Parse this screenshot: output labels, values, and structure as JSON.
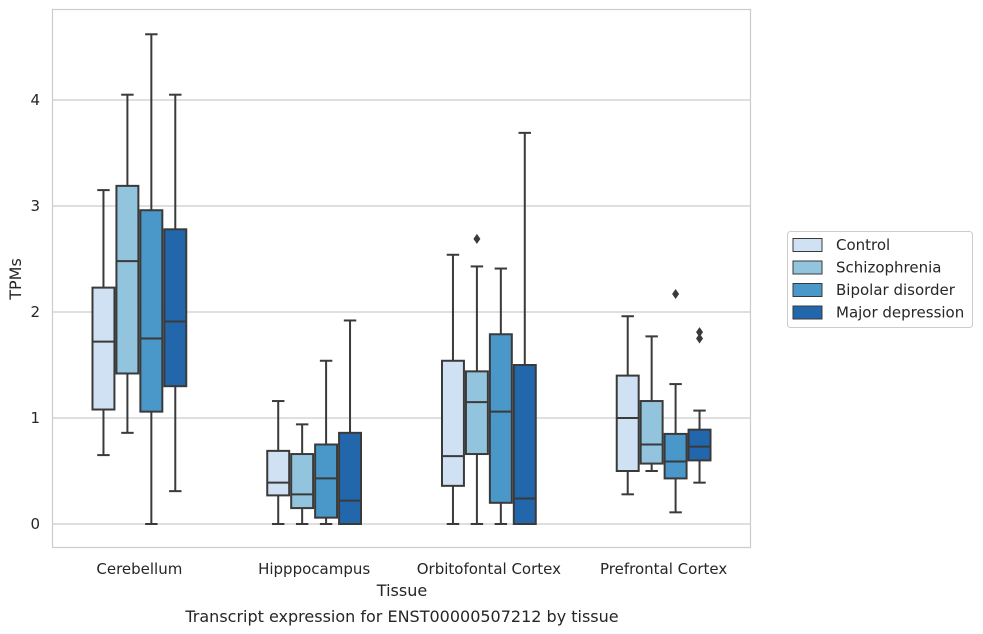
{
  "chart_data": {
    "type": "box",
    "title": "",
    "caption": "Transcript expression for ENST00000507212 by tissue",
    "xlabel": "Tissue",
    "ylabel": "TPMs",
    "ylim": [
      -0.22,
      4.86
    ],
    "yticks": [
      0,
      1,
      2,
      3,
      4
    ],
    "ytick_labels": [
      "0",
      "1",
      "2",
      "3",
      "4"
    ],
    "grid": "horizontal",
    "legend_position": "right",
    "categories": [
      "Cerebellum",
      "Hipppocampus",
      "Orbitofontal Cortex",
      "Prefrontal Cortex"
    ],
    "series": [
      {
        "name": "Control",
        "color": "#cfe1f2",
        "boxes": [
          {
            "whislo": 0.65,
            "q1": 1.08,
            "med": 1.72,
            "q3": 2.23,
            "whishi": 3.15,
            "fliers": []
          },
          {
            "whislo": 0.0,
            "q1": 0.27,
            "med": 0.39,
            "q3": 0.69,
            "whishi": 1.16,
            "fliers": []
          },
          {
            "whislo": 0.0,
            "q1": 0.36,
            "med": 0.64,
            "q3": 1.54,
            "whishi": 2.54,
            "fliers": []
          },
          {
            "whislo": 0.28,
            "q1": 0.5,
            "med": 1.0,
            "q3": 1.4,
            "whishi": 1.96,
            "fliers": []
          }
        ]
      },
      {
        "name": "Schizophrenia",
        "color": "#93c4de",
        "boxes": [
          {
            "whislo": 0.86,
            "q1": 1.42,
            "med": 2.48,
            "q3": 3.19,
            "whishi": 4.05,
            "fliers": []
          },
          {
            "whislo": 0.0,
            "q1": 0.15,
            "med": 0.28,
            "q3": 0.66,
            "whishi": 0.94,
            "fliers": []
          },
          {
            "whislo": 0.0,
            "q1": 0.66,
            "med": 1.15,
            "q3": 1.44,
            "whishi": 2.43,
            "fliers": [
              2.69
            ]
          },
          {
            "whislo": 0.5,
            "q1": 0.57,
            "med": 0.75,
            "q3": 1.16,
            "whishi": 1.77,
            "fliers": []
          }
        ]
      },
      {
        "name": "Bipolar disorder",
        "color": "#4a98c9",
        "boxes": [
          {
            "whislo": 0.0,
            "q1": 1.06,
            "med": 1.75,
            "q3": 2.96,
            "whishi": 4.62,
            "fliers": []
          },
          {
            "whislo": 0.0,
            "q1": 0.06,
            "med": 0.43,
            "q3": 0.75,
            "whishi": 1.54,
            "fliers": []
          },
          {
            "whislo": 0.0,
            "q1": 0.2,
            "med": 1.06,
            "q3": 1.79,
            "whishi": 2.41,
            "fliers": []
          },
          {
            "whislo": 0.11,
            "q1": 0.43,
            "med": 0.59,
            "q3": 0.85,
            "whishi": 1.32,
            "fliers": [
              2.17
            ]
          }
        ]
      },
      {
        "name": "Major depression",
        "color": "#2267ac",
        "boxes": [
          {
            "whislo": 0.31,
            "q1": 1.3,
            "med": 1.91,
            "q3": 2.78,
            "whishi": 4.05,
            "fliers": []
          },
          {
            "whislo": 0.0,
            "q1": 0.0,
            "med": 0.22,
            "q3": 0.86,
            "whishi": 1.92,
            "fliers": []
          },
          {
            "whislo": 0.0,
            "q1": 0.0,
            "med": 0.24,
            "q3": 1.5,
            "whishi": 3.69,
            "fliers": []
          },
          {
            "whislo": 0.39,
            "q1": 0.6,
            "med": 0.73,
            "q3": 0.89,
            "whishi": 1.07,
            "fliers": [
              1.75,
              1.81
            ]
          }
        ]
      }
    ]
  }
}
